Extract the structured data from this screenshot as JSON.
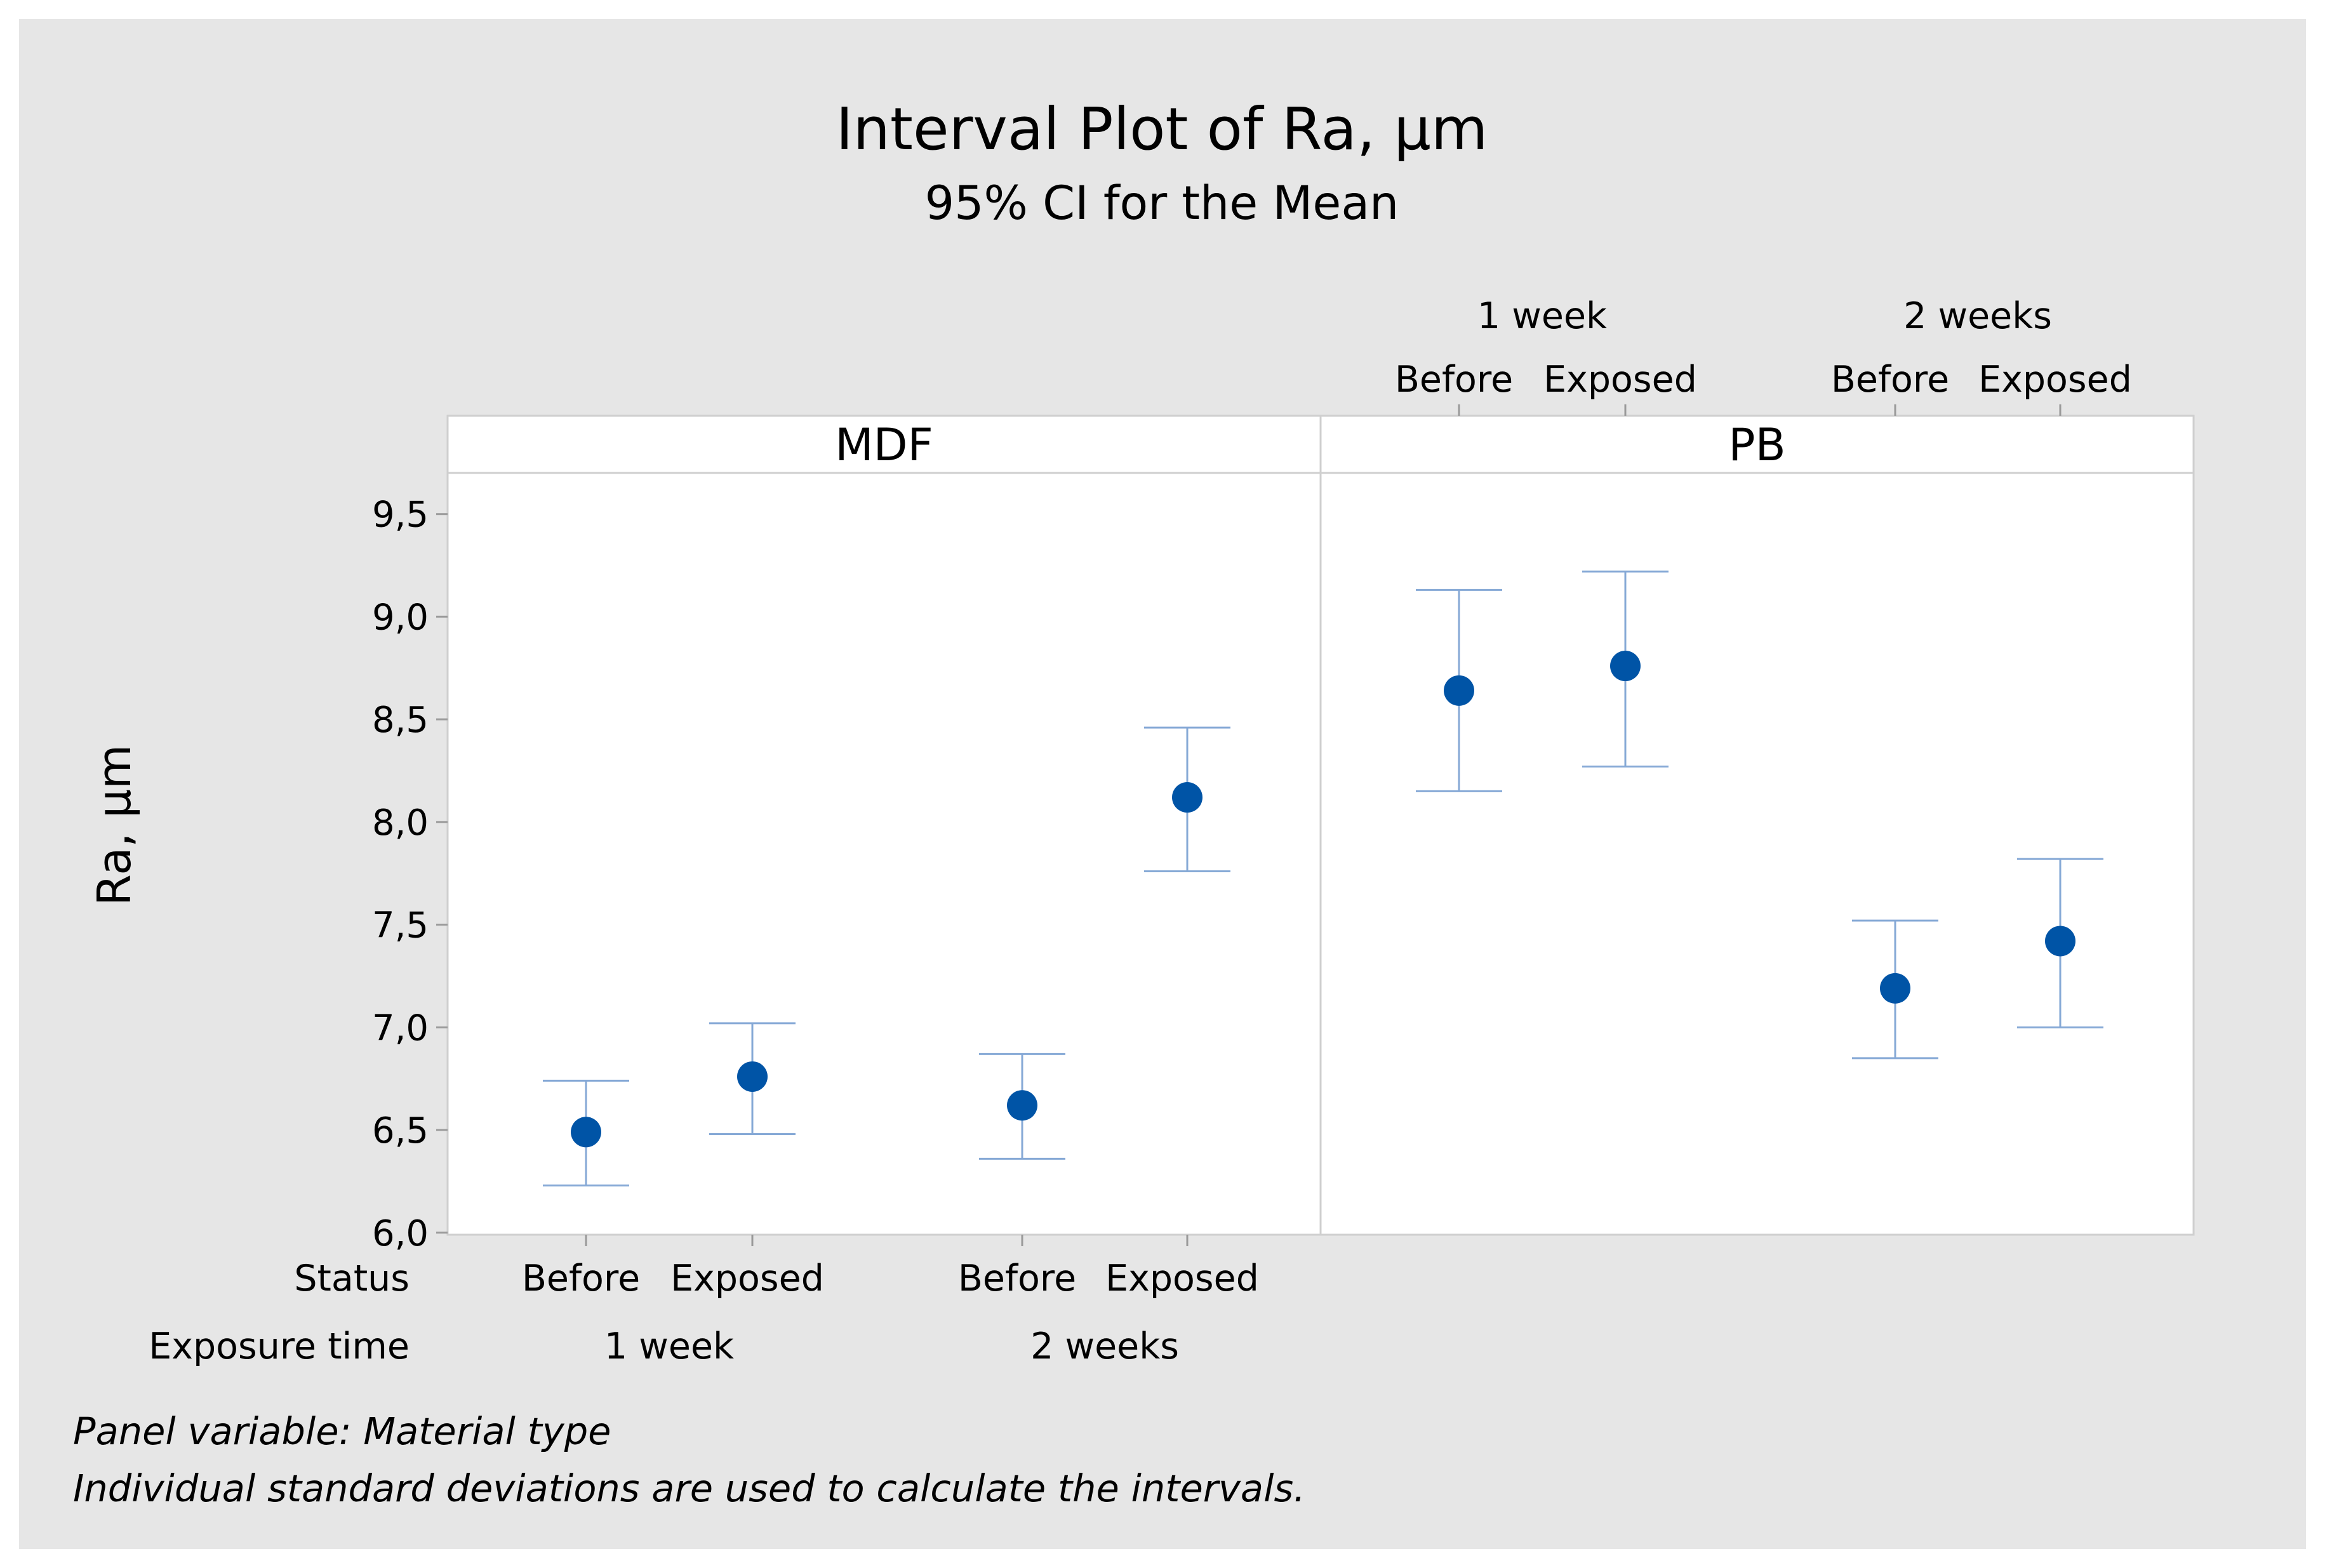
{
  "colors": {
    "outer_background": "#e6e6e6",
    "plot_background": "#ffffff",
    "point": "#0054a6",
    "interval": "#86a9d6",
    "frame": "#cfcfcf",
    "gridline": "#cfcfcf"
  },
  "chart_data": {
    "type": "interval",
    "title": "Interval Plot of Ra, µm",
    "subtitle": "95% CI for the Mean",
    "ylabel": "Ra, µm",
    "ylim": [
      5.99,
      9.7
    ],
    "y_ticks": [
      6.0,
      6.5,
      7.0,
      7.5,
      8.0,
      8.5,
      9.0,
      9.5
    ],
    "y_tick_labels": [
      "6,0",
      "6,5",
      "7,0",
      "7,5",
      "8,0",
      "8,5",
      "9,0",
      "9,5"
    ],
    "row_labels": {
      "status": "Status",
      "exposure_time": "Exposure time"
    },
    "panels": [
      {
        "name": "MDF",
        "groups": [
          {
            "exposure_time": "1 week",
            "status": "Before",
            "mean": 6.49,
            "lower": 6.23,
            "upper": 6.74
          },
          {
            "exposure_time": "1 week",
            "status": "Exposed",
            "mean": 6.76,
            "lower": 6.48,
            "upper": 7.02
          },
          {
            "exposure_time": "2 weeks",
            "status": "Before",
            "mean": 6.62,
            "lower": 6.36,
            "upper": 6.87
          },
          {
            "exposure_time": "2 weeks",
            "status": "Exposed",
            "mean": 8.12,
            "lower": 7.76,
            "upper": 8.46
          }
        ]
      },
      {
        "name": "PB",
        "groups": [
          {
            "exposure_time": "1 week",
            "status": "Before",
            "mean": 8.64,
            "lower": 8.15,
            "upper": 9.13
          },
          {
            "exposure_time": "1 week",
            "status": "Exposed",
            "mean": 8.76,
            "lower": 8.27,
            "upper": 9.22
          },
          {
            "exposure_time": "2 weeks",
            "status": "Before",
            "mean": 7.19,
            "lower": 6.85,
            "upper": 7.52
          },
          {
            "exposure_time": "2 weeks",
            "status": "Exposed",
            "mean": 7.42,
            "lower": 7.0,
            "upper": 7.82
          }
        ]
      }
    ],
    "footnotes": [
      "Panel variable: Material type",
      "Individual standard deviations are used to calculate the intervals."
    ]
  }
}
